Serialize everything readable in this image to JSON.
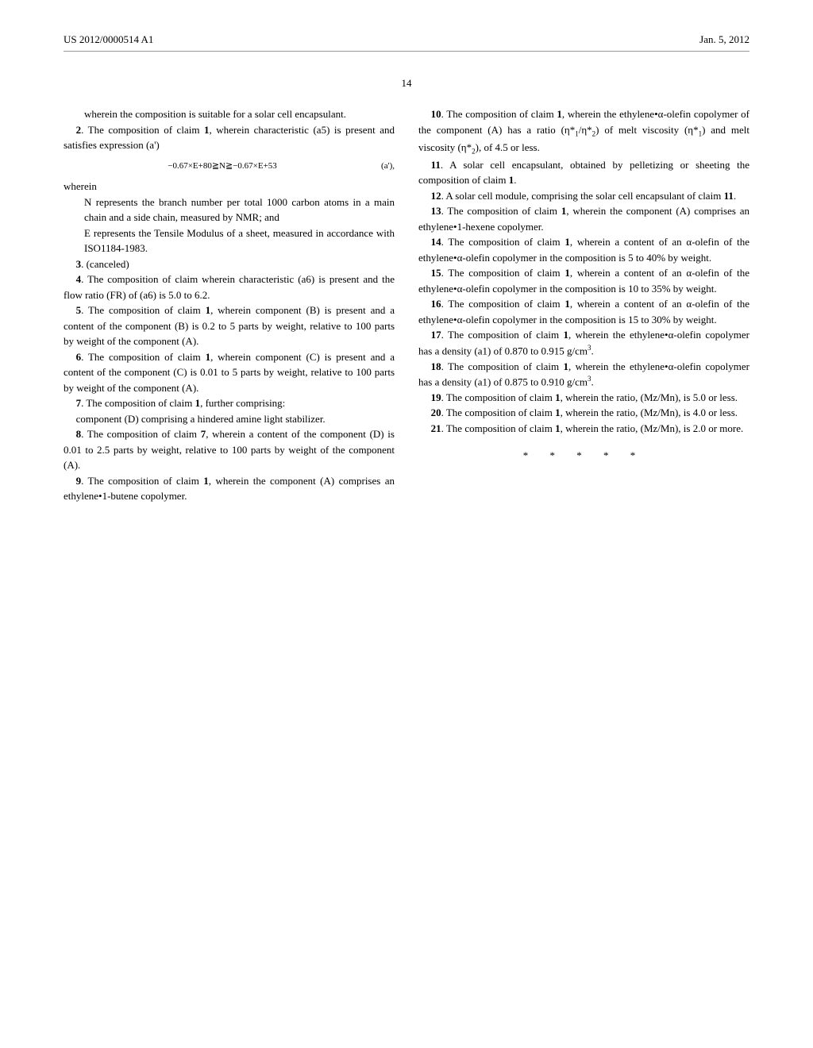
{
  "header": {
    "patent_number": "US 2012/0000514 A1",
    "date": "Jan. 5, 2012"
  },
  "page_number": "14",
  "left_column": {
    "claim1_cont": "wherein the composition is suitable for a solar cell encapsulant.",
    "claim2_lead": "2",
    "claim2_text": ". The composition of claim ",
    "claim2_ref": "1",
    "claim2_rest": ", wherein characteristic (a5) is present and satisfies expression (a')",
    "equation2": "−0.67×E+80≧N≧−0.67×E+53",
    "equation2_label": "(a'),",
    "wherein": "wherein",
    "claim2_sub1": "N represents the branch number per total 1000 carbon atoms in a main chain and a side chain, measured by NMR; and",
    "claim2_sub2": "E represents the Tensile Modulus of a sheet, measured in accordance with ISO1184-1983.",
    "claim3_lead": "3",
    "claim3_text": ". (canceled)",
    "claim4_lead": "4",
    "claim4_text": ". The composition of claim wherein characteristic (a6) is present and the flow ratio (FR) of (a6) is 5.0 to 6.2.",
    "claim5_lead": "5",
    "claim5_text": ". The composition of claim ",
    "claim5_ref": "1",
    "claim5_rest": ", wherein component (B) is present and a content of the component (B) is 0.2 to 5 parts by weight, relative to 100 parts by weight of the component (A).",
    "claim6_lead": "6",
    "claim6_text": ". The composition of claim ",
    "claim6_ref": "1",
    "claim6_rest": ", wherein component (C) is present and a content of the component (C) is 0.01 to 5 parts by weight, relative to 100 parts by weight of the component (A).",
    "claim7_lead": "7",
    "claim7_text": ". The composition of claim ",
    "claim7_ref": "1",
    "claim7_rest": ", further comprising:",
    "claim7_sub": "component (D) comprising a hindered amine light stabilizer.",
    "claim8_lead": "8",
    "claim8_text": ". The composition of claim ",
    "claim8_ref": "7",
    "claim8_rest": ", wherein a content of the component (D) is 0.01 to 2.5 parts by weight, relative to 100 parts by weight of the component (A).",
    "claim9_lead": "9",
    "claim9_text": ". The composition of claim ",
    "claim9_ref": "1",
    "claim9_rest": ", wherein the component (A) comprises an ethylene•1-butene copolymer."
  },
  "right_column": {
    "claim10_lead": "10",
    "claim10_text": ". The composition of claim ",
    "claim10_ref": "1",
    "claim10_rest1": ", wherein the ethylene•α-olefin copolymer of the component (A) has a ratio (η*",
    "claim10_rest2": "/η*",
    "claim10_rest3": ") of melt viscosity (η*",
    "claim10_rest4": ") and melt viscosity (η*",
    "claim10_rest5": "), of 4.5 or less.",
    "claim11_lead": "11",
    "claim11_text": ". A solar cell encapsulant, obtained by pelletizing or sheeting the composition of claim ",
    "claim11_ref": "1",
    "claim11_end": ".",
    "claim12_lead": "12",
    "claim12_text": ". A solar cell module, comprising the solar cell encapsulant of claim ",
    "claim12_ref": "11",
    "claim12_end": ".",
    "claim13_lead": "13",
    "claim13_text": ". The composition of claim ",
    "claim13_ref": "1",
    "claim13_rest": ", wherein the component (A) comprises an ethylene•1-hexene copolymer.",
    "claim14_lead": "14",
    "claim14_text": ". The composition of claim ",
    "claim14_ref": "1",
    "claim14_rest": ", wherein a content of an α-olefin of the ethylene•α-olefin copolymer in the composition is 5 to 40% by weight.",
    "claim15_lead": "15",
    "claim15_text": ". The composition of claim ",
    "claim15_ref": "1",
    "claim15_rest": ", wherein a content of an α-olefin of the ethylene•α-olefin copolymer in the composition is 10 to 35% by weight.",
    "claim16_lead": "16",
    "claim16_text": ". The composition of claim ",
    "claim16_ref": "1",
    "claim16_rest": ", wherein a content of an α-olefin of the ethylene•α-olefin copolymer in the composition is 15 to 30% by weight.",
    "claim17_lead": "17",
    "claim17_text": ". The composition of claim ",
    "claim17_ref": "1",
    "claim17_rest": ", wherein the ethylene•α-olefin copolymer has a density (a1) of 0.870 to 0.915 g/cm",
    "claim17_end": ".",
    "claim18_lead": "18",
    "claim18_text": ". The composition of claim ",
    "claim18_ref": "1",
    "claim18_rest": ", wherein the ethylene•α-olefin copolymer has a density (a1) of 0.875 to 0.910 g/cm",
    "claim18_end": ".",
    "claim19_lead": "19",
    "claim19_text": ". The composition of claim ",
    "claim19_ref": "1",
    "claim19_rest": ", wherein the ratio, (Mz/Mn), is 5.0 or less.",
    "claim20_lead": "20",
    "claim20_text": ". The composition of claim ",
    "claim20_ref": "1",
    "claim20_rest": ", wherein the ratio, (Mz/Mn), is 4.0 or less.",
    "claim21_lead": "21",
    "claim21_text": ". The composition of claim ",
    "claim21_ref": "1",
    "claim21_rest": ", wherein the ratio, (Mz/Mn), is 2.0 or more.",
    "end_marks": "* * * * *"
  }
}
